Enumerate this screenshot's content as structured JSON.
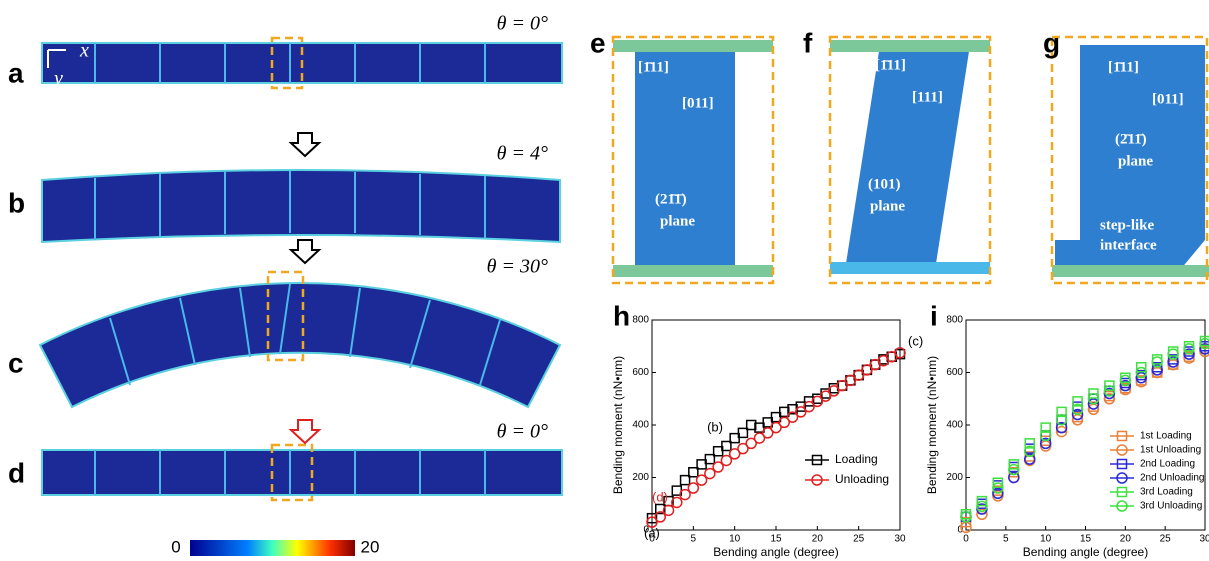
{
  "panel_letters": [
    "a",
    "b",
    "c",
    "d",
    "e",
    "f",
    "g",
    "h",
    "i"
  ],
  "angles": [
    "θ = 0°",
    "θ = 4°",
    "θ = 30°",
    "θ = 0°"
  ],
  "axes": {
    "x": "x",
    "y": "y"
  },
  "colorbar": {
    "min": "0",
    "max": "20"
  },
  "insets": {
    "e": [
      "[1̄11]",
      "[011]",
      "(21̄1̄)",
      "plane"
    ],
    "f": [
      "[1̄11]",
      "[111]",
      "(101)",
      "plane"
    ],
    "g": [
      "[1̄11]",
      "[011]",
      "(2̄11̄)",
      "plane",
      "step-like",
      "interface"
    ]
  },
  "chart_data": [
    {
      "type": "scatter",
      "xlabel": "Bending angle (degree)",
      "ylabel": "Bending moment (nN•nm)",
      "xlim": [
        0,
        30
      ],
      "xticks": [
        0,
        5,
        10,
        15,
        20,
        25,
        30
      ],
      "ylim": [
        0,
        800
      ],
      "yticks": [
        0,
        200,
        400,
        600,
        800
      ],
      "legend": "lower right",
      "annotations": [
        "(a)",
        "(b)",
        "(c)",
        "(d)"
      ],
      "x": [
        0,
        1,
        2,
        3,
        4,
        5,
        6,
        7,
        8,
        9,
        10,
        11,
        12,
        13,
        14,
        15,
        16,
        17,
        18,
        19,
        20,
        21,
        22,
        23,
        24,
        25,
        26,
        27,
        28,
        29,
        30
      ],
      "series": [
        {
          "name": "Loading",
          "color": "#000000",
          "marker": "square",
          "values": [
            45,
            80,
            110,
            150,
            190,
            220,
            250,
            270,
            300,
            320,
            350,
            370,
            400,
            390,
            410,
            430,
            450,
            460,
            470,
            490,
            500,
            520,
            540,
            550,
            570,
            590,
            610,
            630,
            650,
            660,
            670
          ]
        },
        {
          "name": "Unloading",
          "color": "#e02020",
          "marker": "circle",
          "values": [
            30,
            50,
            75,
            105,
            135,
            160,
            190,
            215,
            240,
            265,
            290,
            310,
            330,
            350,
            370,
            390,
            410,
            430,
            450,
            470,
            490,
            510,
            530,
            550,
            570,
            590,
            610,
            630,
            645,
            660,
            675
          ]
        }
      ]
    },
    {
      "type": "scatter",
      "xlabel": "Bending angle (degree)",
      "ylabel": "Bending moment (nN•nm)",
      "xlim": [
        0,
        30
      ],
      "xticks": [
        0,
        5,
        10,
        15,
        20,
        25,
        30
      ],
      "ylim": [
        0,
        800
      ],
      "yticks": [
        0,
        200,
        400,
        600,
        800
      ],
      "legend": "right",
      "x": [
        0,
        2,
        4,
        6,
        8,
        10,
        12,
        14,
        16,
        18,
        20,
        22,
        24,
        26,
        28,
        30
      ],
      "series": [
        {
          "name": "1st Loading",
          "color": "#e8803a",
          "marker": "square",
          "values": [
            30,
            80,
            150,
            220,
            280,
            340,
            390,
            430,
            470,
            510,
            540,
            570,
            600,
            630,
            660,
            690
          ]
        },
        {
          "name": "1st Unloading",
          "color": "#e8803a",
          "marker": "circle",
          "values": [
            10,
            60,
            130,
            200,
            265,
            320,
            375,
            420,
            460,
            500,
            535,
            565,
            600,
            630,
            655,
            680
          ]
        },
        {
          "name": "2nd Loading",
          "color": "#2a2ad8",
          "marker": "square",
          "values": [
            50,
            100,
            170,
            240,
            310,
            360,
            420,
            470,
            500,
            530,
            560,
            590,
            620,
            650,
            680,
            700
          ]
        },
        {
          "name": "2nd Unloading",
          "color": "#2a2ad8",
          "marker": "circle",
          "values": [
            50,
            80,
            140,
            200,
            270,
            330,
            390,
            440,
            480,
            520,
            550,
            580,
            610,
            640,
            670,
            690
          ]
        },
        {
          "name": "3rd Loading",
          "color": "#3de03d",
          "marker": "square",
          "values": [
            60,
            110,
            180,
            250,
            330,
            390,
            450,
            490,
            520,
            550,
            580,
            620,
            650,
            680,
            700,
            720
          ]
        },
        {
          "name": "3rd Unloading",
          "color": "#3de03d",
          "marker": "circle",
          "values": [
            50,
            90,
            160,
            230,
            300,
            360,
            420,
            460,
            500,
            530,
            570,
            600,
            640,
            670,
            690,
            710
          ]
        }
      ]
    }
  ]
}
